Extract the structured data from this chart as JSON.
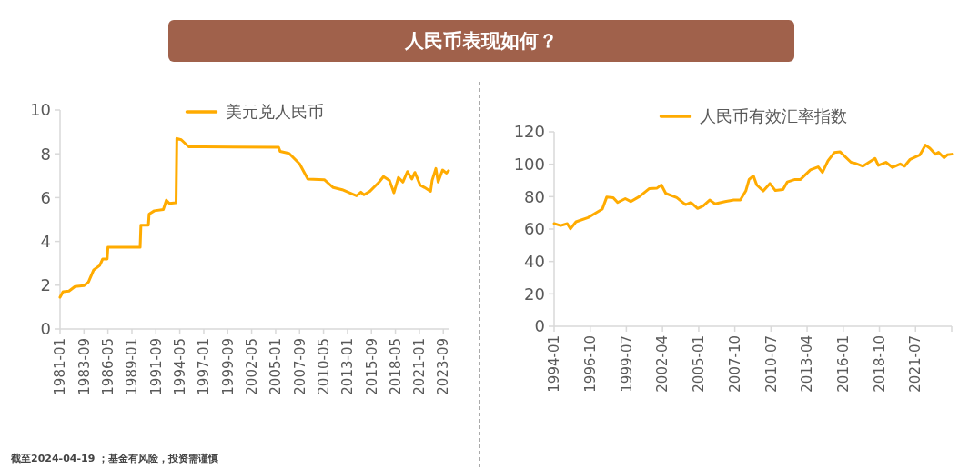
{
  "chart_data": [
    {
      "type": "other",
      "title": "人民币表现如何？",
      "annotations": [
        "截至2024-04-19 ；基金有风险，投资需谨慎"
      ]
    },
    {
      "type": "line",
      "legend": "top",
      "grid": false,
      "marker": "none",
      "line_style": "solid",
      "ylim": [
        0,
        10
      ],
      "yticks": [
        0,
        2,
        4,
        6,
        8,
        10
      ],
      "xlim": [
        "1981-01",
        "2024-04"
      ],
      "xticks": [
        "1981-01",
        "1983-09",
        "1986-05",
        "1989-01",
        "1991-09",
        "1994-05",
        "1997-01",
        "1999-09",
        "2002-05",
        "2005-01",
        "2007-09",
        "2010-05",
        "2013-01",
        "2015-09",
        "2018-05",
        "2021-01",
        "2023-09"
      ],
      "x": [
        "1981-01",
        "1981-05",
        "1982-01",
        "1982-09",
        "1983-09",
        "1984-03",
        "1984-10",
        "1985-06",
        "1985-10",
        "1986-04",
        "1986-05",
        "1989-12",
        "1990-01",
        "1990-11",
        "1990-12",
        "1991-07",
        "1992-07",
        "1992-11",
        "1993-03",
        "1993-12",
        "1994-01",
        "1994-07",
        "1995-05",
        "1996-12",
        "2005-05",
        "2005-07",
        "2006-07",
        "2007-09",
        "2008-08",
        "2010-06",
        "2011-06",
        "2012-06",
        "2014-01",
        "2014-07",
        "2014-11",
        "2015-07",
        "2016-07",
        "2017-01",
        "2017-09",
        "2018-03",
        "2018-09",
        "2019-03",
        "2019-09",
        "2020-03",
        "2020-07",
        "2021-02",
        "2021-08",
        "2022-04",
        "2022-06",
        "2022-11",
        "2023-02",
        "2023-08",
        "2024-01",
        "2024-04"
      ],
      "series": [
        {
          "name": "美元兑人民币",
          "color": "#ffab00",
          "values": [
            1.45,
            1.7,
            1.73,
            1.94,
            1.98,
            2.14,
            2.7,
            2.9,
            3.2,
            3.2,
            3.73,
            3.73,
            4.74,
            4.74,
            5.25,
            5.4,
            5.46,
            5.88,
            5.74,
            5.77,
            8.7,
            8.64,
            8.32,
            8.32,
            8.3,
            8.11,
            8.02,
            7.54,
            6.85,
            6.82,
            6.46,
            6.36,
            6.08,
            6.25,
            6.13,
            6.29,
            6.7,
            6.96,
            6.78,
            6.22,
            6.92,
            6.71,
            7.19,
            6.85,
            7.15,
            6.57,
            6.46,
            6.29,
            6.78,
            7.33,
            6.71,
            7.26,
            7.12,
            7.23
          ]
        }
      ]
    },
    {
      "type": "line",
      "legend": "top",
      "grid": false,
      "marker": "none",
      "line_style": "solid",
      "ylim": [
        0,
        120
      ],
      "yticks": [
        0,
        20,
        40,
        60,
        80,
        100,
        120
      ],
      "xlim": [
        "1994-01",
        "2024-04"
      ],
      "xticks": [
        "1994-01",
        "1996-10",
        "1999-07",
        "2002-04",
        "2005-01",
        "2007-10",
        "2010-07",
        "2013-04",
        "2016-01",
        "2018-10",
        "2021-07",
        {
          "value": "2024-04",
          "label": null
        }
      ],
      "x": [
        "1994-01",
        "1994-07",
        "1995-01",
        "1995-04",
        "1995-09",
        "1996-08",
        "1997-02",
        "1997-09",
        "1998-01",
        "1998-07",
        "1998-11",
        "1999-06",
        "1999-11",
        "2000-07",
        "2001-04",
        "2001-11",
        "2002-03",
        "2002-07",
        "2003-05",
        "2004-01",
        "2004-06",
        "2004-12",
        "2005-05",
        "2005-11",
        "2006-04",
        "2007-01",
        "2007-09",
        "2008-03",
        "2008-08",
        "2008-11",
        "2009-03",
        "2009-06",
        "2009-12",
        "2010-06",
        "2010-11",
        "2011-06",
        "2011-10",
        "2012-05",
        "2012-10",
        "2013-07",
        "2014-02",
        "2014-06",
        "2014-11",
        "2015-05",
        "2015-10",
        "2016-08",
        "2016-12",
        "2017-07",
        "2018-06",
        "2018-09",
        "2019-04",
        "2019-10",
        "2020-05",
        "2020-09",
        "2021-02",
        "2021-11",
        "2022-04",
        "2022-08",
        "2023-01",
        "2023-04",
        "2023-09",
        "2023-12",
        "2024-04"
      ],
      "series": [
        {
          "name": "人民币有效汇率指数",
          "color": "#ffab00",
          "values": [
            63.4,
            62.2,
            63.4,
            60.2,
            64.5,
            67.1,
            69.5,
            72.3,
            79.7,
            79.4,
            76.4,
            78.8,
            77,
            80.1,
            85,
            85.3,
            87.2,
            82,
            79.4,
            75.1,
            76.4,
            72.7,
            74.2,
            77.9,
            75.6,
            77,
            77.9,
            77.9,
            83.5,
            90.6,
            92.8,
            87.2,
            83.5,
            88.1,
            83.8,
            84.4,
            89.1,
            90.6,
            90.6,
            96.5,
            98.4,
            95,
            102.1,
            107.3,
            107.7,
            101.2,
            100.6,
            98.8,
            103.6,
            99.3,
            101.2,
            98,
            100.2,
            98.8,
            103,
            105.8,
            111.8,
            109.9,
            106.2,
            107.3,
            104,
            105.8,
            106.2
          ]
        }
      ]
    }
  ]
}
